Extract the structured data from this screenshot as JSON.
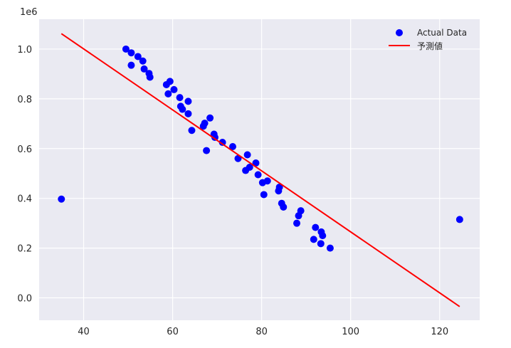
{
  "chart_data": {
    "type": "scatter",
    "title": "",
    "xlabel": "",
    "ylabel": "",
    "y_scale_label": "1e6",
    "xlim": [
      30,
      129
    ],
    "ylim": [
      -0.09,
      1.12
    ],
    "x_ticks": [
      40,
      60,
      80,
      100,
      120
    ],
    "y_ticks": [
      0.0,
      0.2,
      0.4,
      0.6,
      0.8,
      1.0
    ],
    "x_tick_labels": [
      "40",
      "60",
      "80",
      "100",
      "120"
    ],
    "y_tick_labels": [
      "0.0",
      "0.2",
      "0.4",
      "0.6",
      "0.8",
      "1.0"
    ],
    "grid": true,
    "legend_position": "top-right",
    "background_color": "#eaeaf2",
    "series": [
      {
        "name": "Actual Data",
        "kind": "scatter",
        "color": "#0000ff",
        "points": [
          [
            35,
            0.397
          ],
          [
            49.5,
            1.0
          ],
          [
            50.7,
            0.985
          ],
          [
            50.7,
            0.935
          ],
          [
            52.2,
            0.97
          ],
          [
            53.3,
            0.952
          ],
          [
            53.6,
            0.92
          ],
          [
            54.7,
            0.902
          ],
          [
            54.9,
            0.887
          ],
          [
            58.6,
            0.857
          ],
          [
            59.0,
            0.82
          ],
          [
            59.4,
            0.87
          ],
          [
            60.3,
            0.837
          ],
          [
            61.6,
            0.805
          ],
          [
            61.8,
            0.77
          ],
          [
            62.2,
            0.758
          ],
          [
            63.5,
            0.74
          ],
          [
            63.5,
            0.79
          ],
          [
            64.3,
            0.673
          ],
          [
            66.9,
            0.69
          ],
          [
            67.2,
            0.702
          ],
          [
            67.6,
            0.592
          ],
          [
            68.4,
            0.723
          ],
          [
            69.3,
            0.658
          ],
          [
            69.5,
            0.645
          ],
          [
            71.2,
            0.625
          ],
          [
            73.5,
            0.608
          ],
          [
            74.7,
            0.56
          ],
          [
            76.4,
            0.512
          ],
          [
            76.8,
            0.575
          ],
          [
            77.3,
            0.525
          ],
          [
            78.7,
            0.542
          ],
          [
            79.2,
            0.495
          ],
          [
            80.2,
            0.463
          ],
          [
            80.5,
            0.415
          ],
          [
            81.3,
            0.47
          ],
          [
            83.8,
            0.43
          ],
          [
            84.0,
            0.445
          ],
          [
            84.5,
            0.38
          ],
          [
            84.9,
            0.365
          ],
          [
            87.9,
            0.3
          ],
          [
            88.3,
            0.33
          ],
          [
            88.8,
            0.35
          ],
          [
            91.7,
            0.235
          ],
          [
            92.1,
            0.283
          ],
          [
            93.3,
            0.218
          ],
          [
            93.4,
            0.265
          ],
          [
            93.7,
            0.25
          ],
          [
            95.4,
            0.2
          ],
          [
            124.5,
            0.315
          ]
        ]
      },
      {
        "name": "予測値",
        "kind": "line",
        "color": "#ff0000",
        "points": [
          [
            35,
            1.062
          ],
          [
            124.5,
            -0.035
          ]
        ]
      }
    ]
  }
}
